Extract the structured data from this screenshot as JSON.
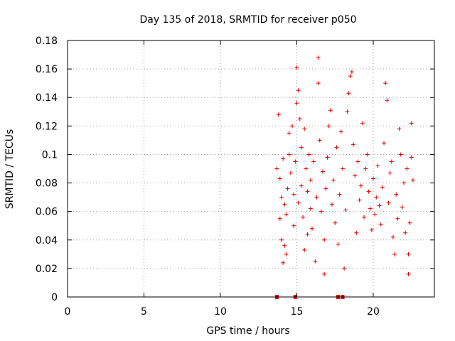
{
  "chart_data": {
    "type": "scatter",
    "title": "Day 135 of 2018, SRMTID for receiver p050",
    "xlabel": "GPS time / hours",
    "ylabel": "SRMTID / TECUs",
    "xlim": [
      0,
      24
    ],
    "ylim": [
      0,
      0.18
    ],
    "xticks": [
      0,
      5,
      10,
      15,
      20
    ],
    "xtick_labels": [
      "0",
      "5",
      "10",
      "15",
      "20"
    ],
    "yticks": [
      0,
      0.02,
      0.04,
      0.06,
      0.08,
      0.1,
      0.12,
      0.14,
      0.16,
      0.18
    ],
    "ytick_labels": [
      "0",
      "0.02",
      "0.04",
      "0.06",
      "0.08",
      "0.1",
      "0.12",
      "0.14",
      "0.16",
      "0.18"
    ],
    "grid": true,
    "marker": "+",
    "color": "#e00000",
    "series": [
      {
        "name": "SRMTID",
        "points": [
          [
            13.7,
            0.09
          ],
          [
            13.8,
            0.128
          ],
          [
            13.9,
            0.083
          ],
          [
            13.9,
            0.055
          ],
          [
            14.0,
            0.04
          ],
          [
            14.0,
            0.07
          ],
          [
            14.1,
            0.024
          ],
          [
            14.1,
            0.097
          ],
          [
            14.2,
            0.065
          ],
          [
            14.2,
            0.036
          ],
          [
            14.3,
            0.03
          ],
          [
            14.3,
            0.058
          ],
          [
            14.4,
            0.076
          ],
          [
            14.5,
            0.115
          ],
          [
            14.5,
            0.1
          ],
          [
            14.6,
            0.087
          ],
          [
            14.7,
            0.12
          ],
          [
            14.8,
            0.072
          ],
          [
            14.8,
            0.05
          ],
          [
            14.9,
            0.095
          ],
          [
            15.0,
            0.161
          ],
          [
            15.0,
            0.136
          ],
          [
            15.1,
            0.145
          ],
          [
            15.1,
            0.066
          ],
          [
            15.2,
            0.125
          ],
          [
            15.3,
            0.105
          ],
          [
            15.3,
            0.078
          ],
          [
            15.4,
            0.056
          ],
          [
            15.5,
            0.118
          ],
          [
            15.5,
            0.033
          ],
          [
            15.6,
            0.09
          ],
          [
            15.7,
            0.044
          ],
          [
            15.7,
            0.074
          ],
          [
            15.8,
            0.1
          ],
          [
            15.9,
            0.062
          ],
          [
            15.9,
            0.082
          ],
          [
            16.0,
            0.048
          ],
          [
            16.1,
            0.095
          ],
          [
            16.2,
            0.025
          ],
          [
            16.3,
            0.07
          ],
          [
            16.4,
            0.168
          ],
          [
            16.4,
            0.15
          ],
          [
            16.5,
            0.11
          ],
          [
            16.6,
            0.06
          ],
          [
            16.7,
            0.088
          ],
          [
            16.8,
            0.016
          ],
          [
            16.8,
            0.04
          ],
          [
            16.9,
            0.076
          ],
          [
            17.0,
            0.098
          ],
          [
            17.1,
            0.12
          ],
          [
            17.2,
            0.131
          ],
          [
            17.3,
            0.065
          ],
          [
            17.4,
            0.082
          ],
          [
            17.5,
            0.052
          ],
          [
            17.6,
            0.105
          ],
          [
            17.7,
            0.037
          ],
          [
            17.8,
            0.072
          ],
          [
            17.9,
            0.116
          ],
          [
            18.0,
            0.09
          ],
          [
            18.1,
            0.02
          ],
          [
            18.2,
            0.061
          ],
          [
            18.3,
            0.13
          ],
          [
            18.4,
            0.143
          ],
          [
            18.5,
            0.155
          ],
          [
            18.6,
            0.158
          ],
          [
            18.7,
            0.107
          ],
          [
            18.8,
            0.085
          ],
          [
            18.9,
            0.045
          ],
          [
            19.0,
            0.095
          ],
          [
            19.1,
            0.068
          ],
          [
            19.2,
            0.078
          ],
          [
            19.3,
            0.122
          ],
          [
            19.4,
            0.056
          ],
          [
            19.5,
            0.09
          ],
          [
            19.6,
            0.1
          ],
          [
            19.7,
            0.074
          ],
          [
            19.8,
            0.062
          ],
          [
            19.9,
            0.047
          ],
          [
            20.0,
            0.083
          ],
          [
            20.1,
            0.058
          ],
          [
            20.2,
            0.07
          ],
          [
            20.3,
            0.092
          ],
          [
            20.4,
            0.064
          ],
          [
            20.5,
            0.051
          ],
          [
            20.6,
            0.077
          ],
          [
            20.7,
            0.108
          ],
          [
            20.8,
            0.15
          ],
          [
            20.9,
            0.138
          ],
          [
            21.0,
            0.066
          ],
          [
            21.1,
            0.087
          ],
          [
            21.2,
            0.095
          ],
          [
            21.3,
            0.042
          ],
          [
            21.4,
            0.03
          ],
          [
            21.5,
            0.072
          ],
          [
            21.6,
            0.055
          ],
          [
            21.7,
            0.118
          ],
          [
            21.8,
            0.1
          ],
          [
            21.9,
            0.063
          ],
          [
            22.0,
            0.08
          ],
          [
            22.1,
            0.045
          ],
          [
            22.2,
            0.09
          ],
          [
            22.3,
            0.016
          ],
          [
            22.3,
            0.03
          ],
          [
            22.4,
            0.052
          ],
          [
            22.5,
            0.122
          ],
          [
            22.5,
            0.098
          ],
          [
            22.6,
            0.082
          ]
        ]
      }
    ],
    "zero_points_x": [
      13.7,
      14.9,
      17.7,
      18.0
    ]
  }
}
